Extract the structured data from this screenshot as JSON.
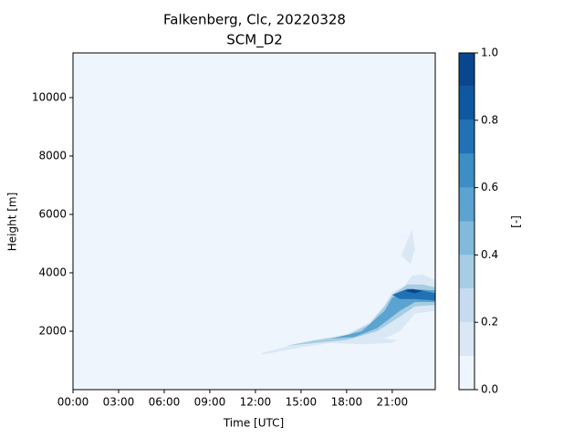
{
  "chart_data": {
    "type": "contour",
    "title": "Falkenberg, Clc, 20220328",
    "subtitle": "SCM_D2",
    "x_label": "Time [UTC]",
    "y_label": "Height [m]",
    "xlim": [
      0,
      23.83
    ],
    "xticks": [
      {
        "value": 0,
        "label": "00:00"
      },
      {
        "value": 3,
        "label": "03:00"
      },
      {
        "value": 6,
        "label": "06:00"
      },
      {
        "value": 9,
        "label": "09:00"
      },
      {
        "value": 12,
        "label": "12:00"
      },
      {
        "value": 15,
        "label": "15:00"
      },
      {
        "value": 18,
        "label": "18:00"
      },
      {
        "value": 21,
        "label": "21:00"
      }
    ],
    "ylim": [
      0,
      11530
    ],
    "yticks": [
      2000,
      4000,
      6000,
      8000,
      10000
    ],
    "colorbar": {
      "label": "[-]",
      "levels": [
        0,
        0.1,
        0.2,
        0.3,
        0.4,
        0.5,
        0.6,
        0.7,
        0.8,
        0.9,
        1.0
      ],
      "colors": [
        "#eef5fc",
        "#dae8f6",
        "#c6dbef",
        "#a6cde3",
        "#82badb",
        "#5ba3d0",
        "#3d8ec4",
        "#2171b5",
        "#0e58a2",
        "#08478e"
      ],
      "ticks": [
        {
          "value": 0,
          "label": "0.0"
        },
        {
          "value": 0.2,
          "label": "0.2"
        },
        {
          "value": 0.4,
          "label": "0.4"
        },
        {
          "value": 0.6,
          "label": "0.6"
        },
        {
          "value": 0.8,
          "label": "0.8"
        },
        {
          "value": 1,
          "label": "1.0"
        }
      ]
    },
    "regions": [
      {
        "level": 0.1,
        "color": "#dae8f6",
        "points": [
          [
            12.4,
            1250
          ],
          [
            13.5,
            1400
          ],
          [
            15,
            1600
          ],
          [
            16.5,
            1750
          ],
          [
            18,
            1900
          ],
          [
            19.5,
            2300
          ],
          [
            20.5,
            2900
          ],
          [
            21,
            3350
          ],
          [
            21.8,
            3550
          ],
          [
            22.3,
            3900
          ],
          [
            23,
            3950
          ],
          [
            23.83,
            3750
          ],
          [
            23.83,
            2700
          ],
          [
            22.5,
            2600
          ],
          [
            21.5,
            2000
          ],
          [
            20.5,
            1750
          ],
          [
            21.3,
            1700
          ],
          [
            21,
            1600
          ],
          [
            19,
            1550
          ],
          [
            17,
            1600
          ],
          [
            15,
            1450
          ],
          [
            13.5,
            1300
          ],
          [
            12.4,
            1200
          ]
        ]
      },
      {
        "level": 0.1,
        "color": "#dae8f6",
        "points": [
          [
            21.6,
            4600
          ],
          [
            22,
            5100
          ],
          [
            22.3,
            5500
          ],
          [
            22.5,
            4800
          ],
          [
            22.2,
            4300
          ]
        ]
      },
      {
        "level": 0.3,
        "color": "#a6cde3",
        "points": [
          [
            14,
            1500
          ],
          [
            16,
            1700
          ],
          [
            18,
            1850
          ],
          [
            19.5,
            2250
          ],
          [
            20.5,
            2850
          ],
          [
            21,
            3250
          ],
          [
            22,
            3600
          ],
          [
            23,
            3600
          ],
          [
            23.83,
            3500
          ],
          [
            23.83,
            2900
          ],
          [
            22.5,
            2850
          ],
          [
            21.5,
            2500
          ],
          [
            20,
            2000
          ],
          [
            18,
            1700
          ],
          [
            16,
            1600
          ]
        ]
      },
      {
        "level": 0.5,
        "color": "#5ba3d0",
        "points": [
          [
            17,
            1750
          ],
          [
            19,
            2000
          ],
          [
            20.5,
            2700
          ],
          [
            21,
            3150
          ],
          [
            22,
            3450
          ],
          [
            23.83,
            3400
          ],
          [
            23.83,
            3000
          ],
          [
            22.5,
            3000
          ],
          [
            21.5,
            2700
          ],
          [
            20,
            2100
          ],
          [
            18.5,
            1800
          ]
        ]
      },
      {
        "level": 0.7,
        "color": "#2171b5",
        "points": [
          [
            21,
            3250
          ],
          [
            22,
            3450
          ],
          [
            23,
            3400
          ],
          [
            23.83,
            3300
          ],
          [
            23.83,
            3050
          ],
          [
            22.5,
            3100
          ],
          [
            21.5,
            3100
          ]
        ]
      },
      {
        "level": 0.9,
        "color": "#08478e",
        "points": [
          [
            21.8,
            3380
          ],
          [
            22.3,
            3450
          ],
          [
            23,
            3380
          ],
          [
            22.5,
            3300
          ]
        ]
      }
    ]
  }
}
